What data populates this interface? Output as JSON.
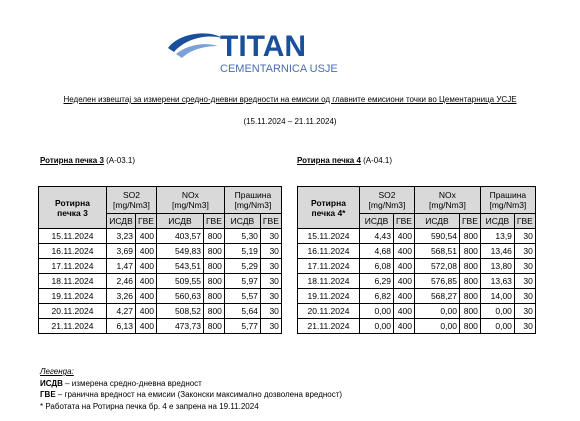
{
  "logo": {
    "brand": "TITAN",
    "subtitle": "CEMENTARNICA USJE"
  },
  "header": {
    "title": "Неделен извештај за измерени средно-дневни вредности на емисии од главните емисиони точки во Цементарница УСЈЕ",
    "period": "(15.11.2024 – 21.11.2024)"
  },
  "tables": [
    {
      "heading": "Ротирна печка 3",
      "code": "(А-03.1)",
      "corner": "Ротирна\nпечка 3",
      "groups": [
        "SO2\n[mg/Nm3]",
        "NOx\n[mg/Nm3]",
        "Прашина\n[mg/Nm3]"
      ],
      "subheaders": [
        "ИСДВ",
        "ГВЕ",
        "ИСДВ",
        "ГВЕ",
        "ИСДВ",
        "ГВЕ"
      ],
      "rows": [
        [
          "15.11.2024",
          "3,23",
          "400",
          "403,57",
          "800",
          "5,30",
          "30"
        ],
        [
          "16.11.2024",
          "3,69",
          "400",
          "549,83",
          "800",
          "5,19",
          "30"
        ],
        [
          "17.11.2024",
          "1,47",
          "400",
          "543,51",
          "800",
          "5,29",
          "30"
        ],
        [
          "18.11.2024",
          "2,46",
          "400",
          "509,55",
          "800",
          "5,97",
          "30"
        ],
        [
          "19.11.2024",
          "3,26",
          "400",
          "560,63",
          "800",
          "5,57",
          "30"
        ],
        [
          "20.11.2024",
          "4,27",
          "400",
          "508,52",
          "800",
          "5,64",
          "30"
        ],
        [
          "21.11.2024",
          "6,13",
          "400",
          "473,73",
          "800",
          "5,77",
          "30"
        ]
      ]
    },
    {
      "heading": "Ротирна печка 4",
      "code": "(А-04.1)",
      "corner": "Ротирна\nпечка 4*",
      "groups": [
        "SO2\n[mg/Nm3]",
        "NOx\n[mg/Nm3]",
        "Прашина\n[mg/Nm3]"
      ],
      "subheaders": [
        "ИСДВ",
        "ГВЕ",
        "ИСДВ",
        "ГВЕ",
        "ИСДВ",
        "ГВЕ"
      ],
      "rows": [
        [
          "15.11.2024",
          "4,43",
          "400",
          "590,54",
          "800",
          "13,9",
          "30"
        ],
        [
          "16.11.2024",
          "4,68",
          "400",
          "568,51",
          "800",
          "13,46",
          "30"
        ],
        [
          "17.11.2024",
          "6,08",
          "400",
          "572,08",
          "800",
          "13,80",
          "30"
        ],
        [
          "18.11.2024",
          "6,29",
          "400",
          "576,85",
          "800",
          "13,63",
          "30"
        ],
        [
          "19.11.2024",
          "6,82",
          "400",
          "568,27",
          "800",
          "14,00",
          "30"
        ],
        [
          "20.11.2024",
          "0,00",
          "400",
          "0,00",
          "800",
          "0,00",
          "30"
        ],
        [
          "21.11.2024",
          "0,00",
          "400",
          "0,00",
          "800",
          "0,00",
          "30"
        ]
      ]
    }
  ],
  "legend": {
    "title": "Легенда:",
    "items": [
      {
        "term": "ИСДВ",
        "text": " – измерена средно-дневна вредност"
      },
      {
        "term": "ГВЕ",
        "text": " – гранична вредност на емисии (Законски максимално дозволена вредност)"
      }
    ],
    "note": "* Работата на Ротирна печка бр. 4 е запрена на 19.11.2024"
  }
}
